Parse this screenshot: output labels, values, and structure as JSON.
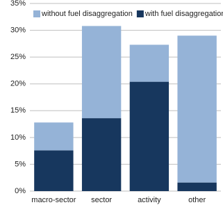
{
  "chart_data": {
    "type": "bar",
    "stacked": true,
    "categories": [
      "macro-sector",
      "sector",
      "activity",
      "other"
    ],
    "series": [
      {
        "name": "without fuel disaggregation",
        "color": "#95b3d7",
        "values": [
          5.2,
          17.2,
          6.9,
          27.4
        ]
      },
      {
        "name": "with fuel disaggregation",
        "color": "#17375e",
        "values": [
          7.6,
          13.6,
          20.4,
          1.6
        ]
      }
    ],
    "ylim": [
      0,
      35
    ],
    "yticks": [
      {
        "value": 0,
        "label": "0%"
      },
      {
        "value": 5,
        "label": "5%"
      },
      {
        "value": 10,
        "label": "10%"
      },
      {
        "value": 15,
        "label": "15%"
      },
      {
        "value": 20,
        "label": "20%"
      },
      {
        "value": 25,
        "label": "25%"
      },
      {
        "value": 30,
        "label": "30%"
      },
      {
        "value": 35,
        "label": "35%"
      }
    ],
    "grid": true,
    "legend": "top-left"
  }
}
